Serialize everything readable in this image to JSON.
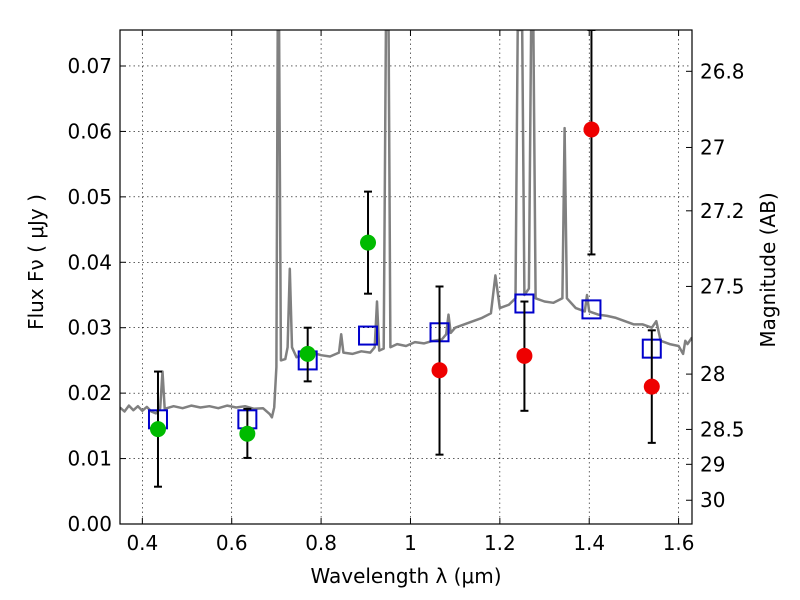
{
  "chart_data": {
    "type": "scatter",
    "xlabel": "Wavelength  λ (μm)",
    "ylabel": "Flux  Fν  ( μJy )",
    "y2label": "Magnitude (AB)",
    "xlim": [
      0.35,
      1.63
    ],
    "ylim": [
      0.0,
      0.0755
    ],
    "grid": true,
    "x_ticks": [
      "0.4",
      "0.6",
      "0.8",
      "1",
      "1.2",
      "1.4",
      "1.6"
    ],
    "y_ticks": [
      "0.00",
      "0.01",
      "0.02",
      "0.03",
      "0.04",
      "0.05",
      "0.06",
      "0.07"
    ],
    "y2_ticks": [
      {
        "label": "26.8",
        "value": 26.8
      },
      {
        "label": "27",
        "value": 27.0
      },
      {
        "label": "27.2",
        "value": 27.2
      },
      {
        "label": "27.5",
        "value": 27.5
      },
      {
        "label": "28",
        "value": 28.0
      },
      {
        "label": "28.5",
        "value": 28.5
      },
      {
        "label": "29",
        "value": 29.0
      },
      {
        "label": "30",
        "value": 30.0
      }
    ],
    "colors": {
      "model": "#808080",
      "model_points": "#0000cc",
      "green_points": "#00bb00",
      "red_points": "#ee0000",
      "errorbars": "#000000"
    },
    "series": [
      {
        "type": "line",
        "key": "model",
        "points": [
          [
            0.35,
            0.0178
          ],
          [
            0.36,
            0.0172
          ],
          [
            0.37,
            0.0181
          ],
          [
            0.38,
            0.0174
          ],
          [
            0.39,
            0.018
          ],
          [
            0.4,
            0.0173
          ],
          [
            0.41,
            0.0179
          ],
          [
            0.42,
            0.0172
          ],
          [
            0.43,
            0.0169
          ],
          [
            0.44,
            0.0177
          ],
          [
            0.445,
            0.0233
          ],
          [
            0.45,
            0.0176
          ],
          [
            0.47,
            0.018
          ],
          [
            0.49,
            0.0177
          ],
          [
            0.51,
            0.0181
          ],
          [
            0.53,
            0.0178
          ],
          [
            0.55,
            0.018
          ],
          [
            0.57,
            0.0177
          ],
          [
            0.59,
            0.0181
          ],
          [
            0.61,
            0.0178
          ],
          [
            0.63,
            0.018
          ],
          [
            0.65,
            0.0176
          ],
          [
            0.67,
            0.0177
          ],
          [
            0.685,
            0.0168
          ],
          [
            0.69,
            0.0163
          ],
          [
            0.695,
            0.0178
          ],
          [
            0.7,
            0.024
          ],
          [
            0.703,
            0.0755
          ],
          [
            0.706,
            0.0755
          ],
          [
            0.71,
            0.025
          ],
          [
            0.72,
            0.0252
          ],
          [
            0.725,
            0.027
          ],
          [
            0.73,
            0.039
          ],
          [
            0.735,
            0.027
          ],
          [
            0.745,
            0.0255
          ],
          [
            0.76,
            0.0258
          ],
          [
            0.78,
            0.0262
          ],
          [
            0.8,
            0.0258
          ],
          [
            0.82,
            0.0256
          ],
          [
            0.84,
            0.0262
          ],
          [
            0.845,
            0.029
          ],
          [
            0.85,
            0.0262
          ],
          [
            0.87,
            0.026
          ],
          [
            0.89,
            0.0264
          ],
          [
            0.91,
            0.0262
          ],
          [
            0.92,
            0.027
          ],
          [
            0.925,
            0.034
          ],
          [
            0.93,
            0.0265
          ],
          [
            0.94,
            0.0268
          ],
          [
            0.945,
            0.0755
          ],
          [
            0.951,
            0.0755
          ],
          [
            0.955,
            0.027
          ],
          [
            0.97,
            0.0275
          ],
          [
            0.99,
            0.0272
          ],
          [
            1.01,
            0.0278
          ],
          [
            1.03,
            0.0276
          ],
          [
            1.05,
            0.028
          ],
          [
            1.07,
            0.0282
          ],
          [
            1.08,
            0.029
          ],
          [
            1.085,
            0.032
          ],
          [
            1.09,
            0.0292
          ],
          [
            1.1,
            0.03
          ],
          [
            1.12,
            0.0305
          ],
          [
            1.14,
            0.031
          ],
          [
            1.16,
            0.0315
          ],
          [
            1.18,
            0.0322
          ],
          [
            1.19,
            0.038
          ],
          [
            1.2,
            0.033
          ],
          [
            1.22,
            0.0335
          ],
          [
            1.235,
            0.0345
          ],
          [
            1.24,
            0.0755
          ],
          [
            1.25,
            0.0755
          ],
          [
            1.255,
            0.035
          ],
          [
            1.265,
            0.036
          ],
          [
            1.27,
            0.0755
          ],
          [
            1.275,
            0.0755
          ],
          [
            1.28,
            0.0345
          ],
          [
            1.3,
            0.034
          ],
          [
            1.32,
            0.0338
          ],
          [
            1.34,
            0.0345
          ],
          [
            1.345,
            0.0605
          ],
          [
            1.35,
            0.0345
          ],
          [
            1.37,
            0.033
          ],
          [
            1.39,
            0.0325
          ],
          [
            1.395,
            0.035
          ],
          [
            1.4,
            0.0325
          ],
          [
            1.42,
            0.032
          ],
          [
            1.44,
            0.0318
          ],
          [
            1.46,
            0.0315
          ],
          [
            1.48,
            0.031
          ],
          [
            1.5,
            0.0305
          ],
          [
            1.52,
            0.0305
          ],
          [
            1.54,
            0.03
          ],
          [
            1.55,
            0.031
          ],
          [
            1.56,
            0.028
          ],
          [
            1.58,
            0.0275
          ],
          [
            1.6,
            0.0272
          ],
          [
            1.61,
            0.026
          ],
          [
            1.615,
            0.028
          ],
          [
            1.62,
            0.0275
          ],
          [
            1.63,
            0.0285
          ]
        ]
      },
      {
        "type": "scatter",
        "key": "model_points",
        "marker": "square",
        "points": [
          [
            0.435,
            0.016
          ],
          [
            0.635,
            0.016
          ],
          [
            0.77,
            0.025
          ],
          [
            0.905,
            0.0288
          ],
          [
            1.065,
            0.0293
          ],
          [
            1.255,
            0.0337
          ],
          [
            1.405,
            0.0328
          ],
          [
            1.54,
            0.0268
          ]
        ]
      },
      {
        "type": "scatter",
        "key": "green_points",
        "marker": "circle",
        "points": [
          {
            "x": 0.435,
            "y": 0.0145,
            "ylo": 0.0057,
            "yhi": 0.0233
          },
          {
            "x": 0.635,
            "y": 0.0138,
            "ylo": 0.0101,
            "yhi": 0.0176
          },
          {
            "x": 0.77,
            "y": 0.026,
            "ylo": 0.0218,
            "yhi": 0.03
          },
          {
            "x": 0.905,
            "y": 0.043,
            "ylo": 0.0352,
            "yhi": 0.0508
          }
        ]
      },
      {
        "type": "scatter",
        "key": "red_points",
        "marker": "circle",
        "points": [
          {
            "x": 1.065,
            "y": 0.0235,
            "ylo": 0.0106,
            "yhi": 0.0363
          },
          {
            "x": 1.255,
            "y": 0.0257,
            "ylo": 0.0173,
            "yhi": 0.034
          },
          {
            "x": 1.405,
            "y": 0.0603,
            "ylo": 0.0412,
            "yhi": 0.0755
          },
          {
            "x": 1.54,
            "y": 0.021,
            "ylo": 0.0124,
            "yhi": 0.0296
          }
        ]
      }
    ]
  }
}
